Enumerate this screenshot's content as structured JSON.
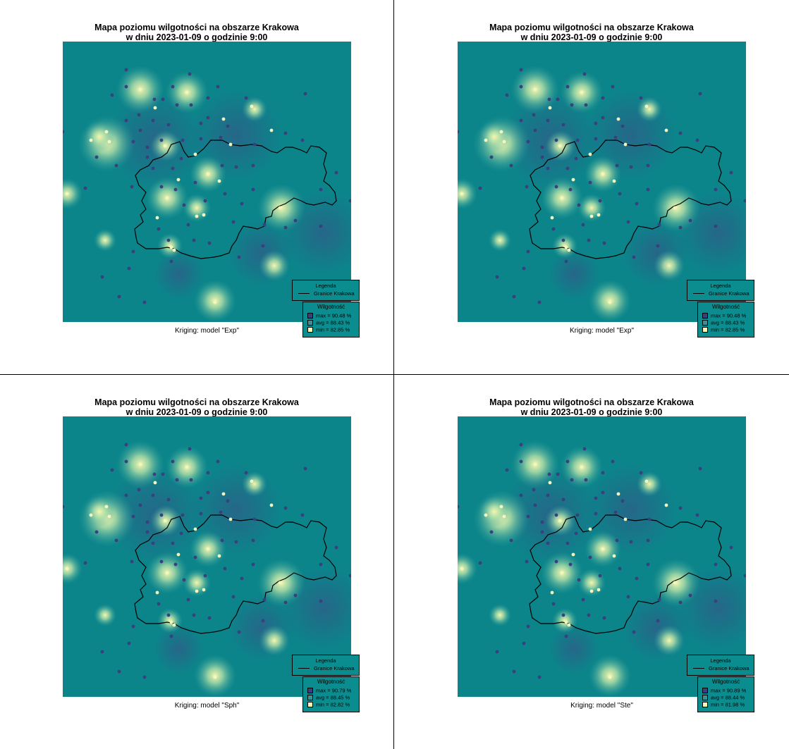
{
  "colors": {
    "low": "#0b858a",
    "mid": "#3a8f98",
    "high": "#f8f7b0",
    "station_dark": "#3b3f7e",
    "station_light": "#f4f6c0",
    "border": "#000000",
    "legend_bg": "#0b8d8f"
  },
  "panels": [
    {
      "title_line1": "Mapa poziomu wilgotności na obszarze Krakowa",
      "title_line2": "w dniu 2023-01-09 o godzinie 9:00",
      "caption": "Kriging: model \"Exp\"",
      "legend": {
        "title": "Legenda",
        "border_label": "Granice Krakowa",
        "stats_title": "Wilgotność",
        "max": "max =  90.48 %",
        "avg": "avg =  88.43 %",
        "min": "min =  82.85 %"
      }
    },
    {
      "title_line1": "Mapa poziomu wilgotności na obszarze Krakowa",
      "title_line2": "w dniu 2023-01-09 o godzinie 9:00",
      "caption": "Kriging: model \"Exp\"",
      "legend": {
        "title": "Legenda",
        "border_label": "Granice Krakowa",
        "stats_title": "Wilgotność",
        "max": "max =  90.48 %",
        "avg": "avg =  88.43 %",
        "min": "min =  82.85 %"
      }
    },
    {
      "title_line1": "Mapa poziomu wilgotności na obszarze Krakowa",
      "title_line2": "w dniu 2023-01-09 o godzinie 9:00",
      "caption": "Kriging: model \"Sph\"",
      "legend": {
        "title": "Legenda",
        "border_label": "Granice Krakowa",
        "stats_title": "Wilgotność",
        "max": "max =  90.79 %",
        "avg": "avg =  88.45 %",
        "min": "min =  82.82 %"
      }
    },
    {
      "title_line1": "Mapa poziomu wilgotności na obszarze Krakowa",
      "title_line2": "w dniu 2023-01-09 o godzinie 9:00",
      "caption": "Kriging: model \"Ste\"",
      "legend": {
        "title": "Legenda",
        "border_label": "Granice Krakowa",
        "stats_title": "Wilgotność",
        "max": "max =  90.89 %",
        "avg": "avg =  88.44 %",
        "min": "min =  81.98 %"
      }
    }
  ]
}
